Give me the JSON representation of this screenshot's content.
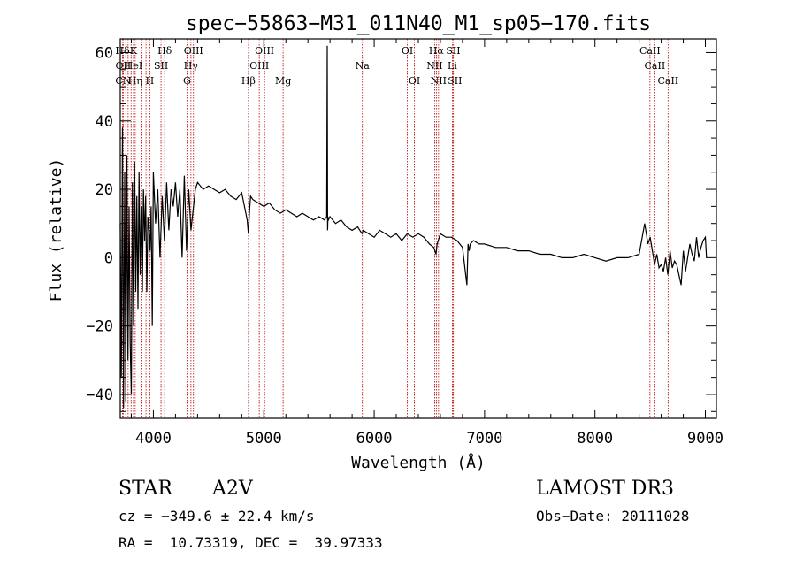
{
  "chart_data": {
    "type": "line",
    "title": "spec−55863−M31_011N40_M1_sp05−170.fits",
    "xlabel": "Wavelength (Å)",
    "ylabel": "Flux (relative)",
    "xlim": [
      3700,
      9100
    ],
    "ylim": [
      -47,
      64
    ],
    "x_ticks": [
      4000,
      5000,
      6000,
      7000,
      8000,
      9000
    ],
    "y_ticks": [
      -40,
      -20,
      0,
      20,
      40,
      60
    ],
    "y_tick_labels": [
      "−40",
      "−20",
      "0",
      "20",
      "40",
      "60"
    ],
    "grid": false,
    "series": [
      {
        "name": "spectrum",
        "x": [
          3700,
          3710,
          3720,
          3730,
          3740,
          3750,
          3760,
          3770,
          3780,
          3790,
          3800,
          3810,
          3820,
          3830,
          3840,
          3850,
          3860,
          3870,
          3880,
          3890,
          3900,
          3910,
          3920,
          3930,
          3940,
          3950,
          3960,
          3970,
          3980,
          3990,
          4000,
          4020,
          4040,
          4060,
          4080,
          4100,
          4120,
          4140,
          4160,
          4180,
          4200,
          4220,
          4240,
          4260,
          4280,
          4300,
          4320,
          4340,
          4360,
          4380,
          4400,
          4450,
          4500,
          4550,
          4600,
          4650,
          4700,
          4750,
          4800,
          4850,
          4860,
          4870,
          4880,
          4900,
          4950,
          5000,
          5050,
          5100,
          5150,
          5200,
          5250,
          5300,
          5350,
          5400,
          5450,
          5500,
          5550,
          5570,
          5575,
          5578,
          5581,
          5585,
          5600,
          5650,
          5700,
          5750,
          5800,
          5850,
          5890,
          5900,
          5950,
          6000,
          6050,
          6100,
          6150,
          6200,
          6250,
          6300,
          6350,
          6400,
          6450,
          6500,
          6540,
          6560,
          6570,
          6600,
          6650,
          6700,
          6750,
          6800,
          6840,
          6850,
          6860,
          6870,
          6900,
          6950,
          7000,
          7100,
          7200,
          7300,
          7400,
          7500,
          7600,
          7700,
          7800,
          7900,
          8000,
          8100,
          8200,
          8300,
          8400,
          8450,
          8480,
          8500,
          8520,
          8540,
          8560,
          8580,
          8600,
          8620,
          8640,
          8660,
          8680,
          8700,
          8720,
          8740,
          8760,
          8780,
          8800,
          8820,
          8840,
          8860,
          8880,
          8900,
          8920,
          8940,
          8960,
          8980,
          9000,
          9010
        ],
        "values": [
          10,
          -35,
          38,
          -44,
          25,
          -42,
          30,
          -30,
          15,
          -25,
          -40,
          22,
          -20,
          28,
          -10,
          18,
          -15,
          25,
          -5,
          15,
          -10,
          20,
          5,
          18,
          -10,
          12,
          8,
          2,
          15,
          -20,
          25,
          10,
          20,
          0,
          18,
          5,
          22,
          8,
          20,
          15,
          22,
          12,
          20,
          0,
          24,
          2,
          20,
          8,
          14,
          20,
          22,
          20,
          21,
          20,
          19,
          20,
          18,
          17,
          19,
          11,
          7,
          13,
          18,
          17,
          16,
          15,
          16,
          14,
          13,
          14,
          13,
          12,
          13,
          12,
          11,
          12,
          11,
          12,
          62,
          8,
          12,
          11,
          12,
          10,
          11,
          9,
          8,
          9,
          7,
          8,
          7,
          6,
          8,
          7,
          6,
          7,
          5,
          7,
          6,
          7,
          6,
          4,
          3,
          1,
          4,
          7,
          6,
          6,
          5,
          3,
          -8,
          4,
          2,
          4,
          5,
          4,
          4,
          3,
          3,
          2,
          2,
          1,
          1,
          0,
          0,
          1,
          0,
          -1,
          0,
          0,
          1,
          10,
          4,
          6,
          2,
          -2,
          1,
          -3,
          -2,
          -4,
          0,
          -5,
          2,
          -3,
          -1,
          -2,
          -5,
          -8,
          2,
          -4,
          0,
          4,
          1,
          -1,
          6,
          0,
          3,
          5,
          6,
          0
        ],
        "color": "#000000"
      }
    ],
    "line_markers": [
      {
        "label": "Hδ",
        "wl": 3720,
        "row": 1
      },
      {
        "label": "K",
        "wl": 3820,
        "row": 1
      },
      {
        "label": "Hδ",
        "wl": 4102,
        "row": 1
      },
      {
        "label": "OIII",
        "wl": 4363,
        "row": 1
      },
      {
        "label": "OIII",
        "wl": 5007,
        "row": 1
      },
      {
        "label": "OI",
        "wl": 6300,
        "row": 1
      },
      {
        "label": "Hα",
        "wl": 6563,
        "row": 1
      },
      {
        "label": "SII",
        "wl": 6716,
        "row": 1
      },
      {
        "label": "CaII",
        "wl": 8498,
        "row": 1
      },
      {
        "label": "OII",
        "wl": 3727,
        "row": 2
      },
      {
        "label": "HeI",
        "wl": 3820,
        "row": 2
      },
      {
        "label": "SII",
        "wl": 4069,
        "row": 2
      },
      {
        "label": "Hγ",
        "wl": 4340,
        "row": 2
      },
      {
        "label": "OIII",
        "wl": 4959,
        "row": 2
      },
      {
        "label": "Na",
        "wl": 5893,
        "row": 2
      },
      {
        "label": "NII",
        "wl": 6548,
        "row": 2
      },
      {
        "label": "Li",
        "wl": 6708,
        "row": 2
      },
      {
        "label": "CaII",
        "wl": 8542,
        "row": 2
      },
      {
        "label": "CN",
        "wl": 3727,
        "row": 3
      },
      {
        "label": "Hη",
        "wl": 3835,
        "row": 3
      },
      {
        "label": "H",
        "wl": 3968,
        "row": 3
      },
      {
        "label": "G",
        "wl": 4304,
        "row": 3
      },
      {
        "label": "Hβ",
        "wl": 4861,
        "row": 3
      },
      {
        "label": "Mg",
        "wl": 5175,
        "row": 3
      },
      {
        "label": "OI",
        "wl": 6364,
        "row": 3
      },
      {
        "label": "NII",
        "wl": 6583,
        "row": 3
      },
      {
        "label": "SII",
        "wl": 6731,
        "row": 3
      },
      {
        "label": "CaII",
        "wl": 8662,
        "row": 3
      }
    ],
    "extra_marker_lines": [
      3750,
      3771,
      3798,
      3889,
      3933
    ]
  },
  "info": {
    "object_class": "STAR",
    "subclass": "A2V",
    "survey": "LAMOST DR3",
    "redshift_line": "cz = −349.6 ± 22.4 km/s",
    "obs_date_line": "Obs−Date: 20111028",
    "coords_line": "RA =  10.73319, DEC =  39.97333"
  }
}
